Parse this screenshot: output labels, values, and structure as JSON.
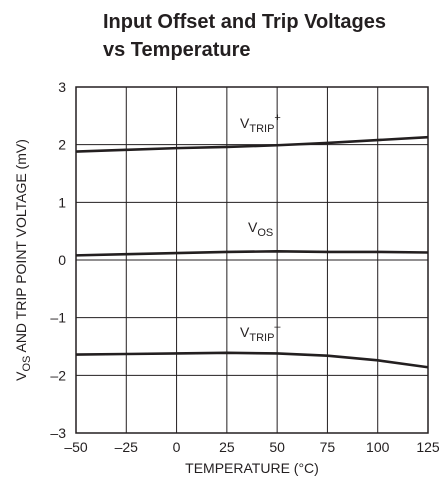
{
  "chart_data": {
    "type": "line",
    "title": [
      "Input Offset and Trip Voltages",
      "vs Temperature"
    ],
    "xlabel": "TEMPERATURE (°C)",
    "ylabel": {
      "base": "V",
      "sub": "OS",
      "rest": " AND TRIP POINT VOLTAGE (mV)"
    },
    "x": [
      -50,
      -25,
      0,
      25,
      50,
      75,
      100,
      125
    ],
    "series": [
      {
        "name": {
          "base": "V",
          "sub": "TRIP",
          "sup": "+"
        },
        "color": "#231f20",
        "values": [
          1.88,
          1.91,
          1.94,
          1.96,
          1.99,
          2.03,
          2.08,
          2.13
        ]
      },
      {
        "name": {
          "base": "V",
          "sub": "OS"
        },
        "color": "#231f20",
        "values": [
          0.08,
          0.1,
          0.12,
          0.14,
          0.15,
          0.14,
          0.14,
          0.13
        ]
      },
      {
        "name": {
          "base": "V",
          "sub": "TRIP",
          "sup": "–"
        },
        "color": "#231f20",
        "values": [
          -1.64,
          -1.63,
          -1.62,
          -1.61,
          -1.62,
          -1.66,
          -1.74,
          -1.86
        ]
      }
    ],
    "xlim": [
      -50,
      125
    ],
    "xticks": [
      {
        "value": -50,
        "label": "–50"
      },
      {
        "value": -25,
        "label": "–25"
      },
      0,
      25,
      50,
      75,
      100,
      125
    ],
    "ylim": [
      -3,
      3
    ],
    "yticks": [
      {
        "value": -3,
        "label": "–3"
      },
      {
        "value": -2,
        "label": "–2"
      },
      {
        "value": -1,
        "label": "–1"
      },
      0,
      1,
      2,
      3
    ],
    "grid": true
  }
}
